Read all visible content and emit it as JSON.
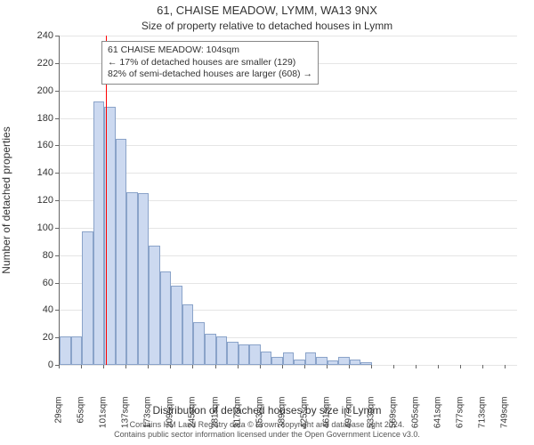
{
  "title_main": "61, CHAISE MEADOW, LYMM, WA13 9NX",
  "title_sub": "Size of property relative to detached houses in Lymm",
  "ylabel": "Number of detached properties",
  "xlabel": "Distribution of detached houses by size in Lymm",
  "footer_line1": "Contains HM Land Registry data © Crown copyright and database right 2024.",
  "footer_line2": "Contains public sector information licensed under the Open Government Licence v3.0.",
  "chart": {
    "type": "histogram",
    "background_color": "#ffffff",
    "grid_color": "#e5e5e5",
    "axis_color": "#666666",
    "bar_fill": "#ccd9f0",
    "bar_border": "#8aa3c9",
    "marker_color": "#ff0000",
    "marker_x_value": 104,
    "ylim": [
      0,
      240
    ],
    "ytick_step": 20,
    "xticks": [
      29,
      65,
      101,
      137,
      173,
      209,
      245,
      281,
      317,
      353,
      389,
      425,
      461,
      497,
      533,
      569,
      605,
      641,
      677,
      713,
      749
    ],
    "xtick_unit": "sqm",
    "bar_width_value": 18,
    "x_range": [
      29,
      767
    ],
    "bars": [
      {
        "x": 29,
        "y": 21
      },
      {
        "x": 47,
        "y": 21
      },
      {
        "x": 65,
        "y": 97
      },
      {
        "x": 83,
        "y": 192
      },
      {
        "x": 101,
        "y": 188
      },
      {
        "x": 119,
        "y": 165
      },
      {
        "x": 137,
        "y": 126
      },
      {
        "x": 155,
        "y": 125
      },
      {
        "x": 173,
        "y": 87
      },
      {
        "x": 191,
        "y": 68
      },
      {
        "x": 209,
        "y": 58
      },
      {
        "x": 227,
        "y": 44
      },
      {
        "x": 245,
        "y": 31
      },
      {
        "x": 263,
        "y": 23
      },
      {
        "x": 281,
        "y": 21
      },
      {
        "x": 299,
        "y": 17
      },
      {
        "x": 317,
        "y": 15
      },
      {
        "x": 335,
        "y": 15
      },
      {
        "x": 353,
        "y": 10
      },
      {
        "x": 371,
        "y": 6
      },
      {
        "x": 389,
        "y": 9
      },
      {
        "x": 407,
        "y": 4
      },
      {
        "x": 425,
        "y": 9
      },
      {
        "x": 443,
        "y": 6
      },
      {
        "x": 461,
        "y": 3
      },
      {
        "x": 479,
        "y": 6
      },
      {
        "x": 497,
        "y": 4
      },
      {
        "x": 515,
        "y": 2
      }
    ]
  },
  "annotation": {
    "line1": "61 CHAISE MEADOW: 104sqm",
    "line2": "← 17% of detached houses are smaller (129)",
    "line3": "82% of semi-detached houses are larger (608) →",
    "border_color": "#888888",
    "background": "#ffffff",
    "fontsize": 10.5
  }
}
